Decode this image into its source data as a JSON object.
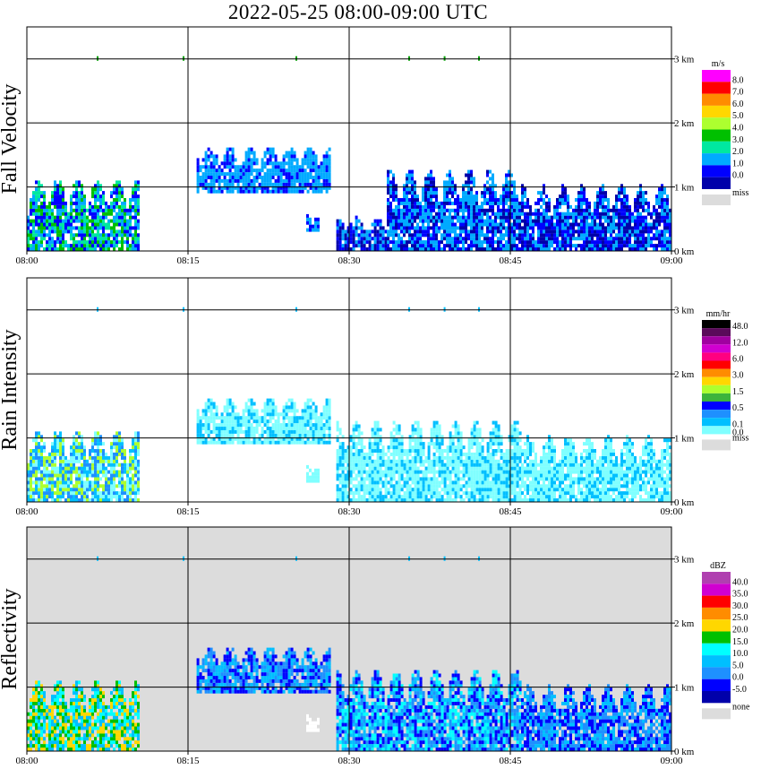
{
  "title": "2022-05-25   08:00-09:00 UTC",
  "chart_data": [
    {
      "type": "heatmap",
      "ylabel": "Fall Velocity",
      "x_ticks": [
        "08:00",
        "08:15",
        "08:30",
        "08:45",
        "09:00"
      ],
      "y_ticks": [
        "0 km",
        "1 km",
        "2 km",
        "3 km"
      ],
      "xlim": [
        "08:00",
        "09:00"
      ],
      "ylim_km": [
        0,
        3.5
      ],
      "grid": true,
      "legend_position": "right",
      "legend_unit": "m/s",
      "legend_labels": [
        "8.0",
        "7.0",
        "6.0",
        "5.0",
        "4.0",
        "3.0",
        "2.0",
        "1.0",
        "0.0"
      ],
      "legend_colors": [
        "#ff00ff",
        "#ff0000",
        "#ff8c00",
        "#ffd700",
        "#adff2f",
        "#00c000",
        "#00e8a0",
        "#00aaff",
        "#0000ff",
        "#0000aa"
      ],
      "missing_label": "miss",
      "missing_color": "#dcdcdc",
      "background": "#ffffff",
      "regions": [
        {
          "t0": 0.0,
          "t1": 10.5,
          "h0": 0.0,
          "h1": 1.1,
          "colors": [
            "#0000ff",
            "#00aaff",
            "#00c000",
            "#00e8a0"
          ]
        },
        {
          "t0": 15.8,
          "t1": 28.3,
          "h0": 0.9,
          "h1": 1.6,
          "colors": [
            "#0000ff",
            "#00aaff",
            "#00aaff"
          ]
        },
        {
          "t0": 26.0,
          "t1": 27.2,
          "h0": 0.3,
          "h1": 0.55,
          "colors": [
            "#00aaff",
            "#0000ff"
          ]
        },
        {
          "t0": 28.8,
          "t1": 33.5,
          "h0": 0.0,
          "h1": 0.5,
          "colors": [
            "#0000ff",
            "#0000aa",
            "#00aaff"
          ]
        },
        {
          "t0": 33.5,
          "t1": 46.0,
          "h0": 0.0,
          "h1": 1.25,
          "colors": [
            "#0000ff",
            "#00aaff",
            "#0000aa",
            "#00aaff"
          ]
        },
        {
          "t0": 46.0,
          "t1": 60.0,
          "h0": 0.0,
          "h1": 1.0,
          "colors": [
            "#0000ff",
            "#00aaff",
            "#0000aa"
          ]
        }
      ]
    },
    {
      "type": "heatmap",
      "ylabel": "Rain Intensity",
      "x_ticks": [
        "08:00",
        "08:15",
        "08:30",
        "08:45",
        "09:00"
      ],
      "y_ticks": [
        "0 km",
        "1 km",
        "2 km",
        "3 km"
      ],
      "xlim": [
        "08:00",
        "09:00"
      ],
      "ylim_km": [
        0,
        3.5
      ],
      "grid": true,
      "legend_position": "right",
      "legend_unit": "mm/hr",
      "legend_labels": [
        "48.0",
        "",
        "12.0",
        "",
        "6.0",
        "",
        "3.0",
        "",
        "1.5",
        "",
        "0.5",
        "",
        "0.1",
        "0.0"
      ],
      "legend_colors": [
        "#000000",
        "#5a0a5a",
        "#a000a0",
        "#d000d0",
        "#ff0080",
        "#ff0000",
        "#ff8c00",
        "#ffd700",
        "#adff2f",
        "#3cb43c",
        "#0000ff",
        "#1e90ff",
        "#00bfff",
        "#80ffff"
      ],
      "missing_label": "miss",
      "missing_color": "#dcdcdc",
      "background": "#ffffff",
      "regions": [
        {
          "t0": 0.0,
          "t1": 10.5,
          "h0": 0.0,
          "h1": 1.1,
          "colors": [
            "#80ffff",
            "#00bfff",
            "#1e90ff",
            "#adff2f"
          ]
        },
        {
          "t0": 15.8,
          "t1": 28.3,
          "h0": 0.9,
          "h1": 1.6,
          "colors": [
            "#80ffff",
            "#80ffff",
            "#00bfff"
          ]
        },
        {
          "t0": 26.0,
          "t1": 27.2,
          "h0": 0.3,
          "h1": 0.55,
          "colors": [
            "#80ffff"
          ]
        },
        {
          "t0": 28.8,
          "t1": 46.0,
          "h0": 0.0,
          "h1": 1.25,
          "colors": [
            "#80ffff",
            "#80ffff",
            "#00bfff"
          ]
        },
        {
          "t0": 46.0,
          "t1": 60.0,
          "h0": 0.0,
          "h1": 1.0,
          "colors": [
            "#80ffff",
            "#80ffff",
            "#00bfff"
          ]
        }
      ]
    },
    {
      "type": "heatmap",
      "ylabel": "Reflectivity",
      "x_ticks": [
        "08:00",
        "08:15",
        "08:30",
        "08:45",
        "09:00"
      ],
      "y_ticks": [
        "0 km",
        "1 km",
        "2 km",
        "3 km"
      ],
      "xlim": [
        "08:00",
        "09:00"
      ],
      "ylim_km": [
        0,
        3.5
      ],
      "grid": true,
      "legend_position": "right",
      "legend_unit": "dBZ",
      "legend_labels": [
        "40.0",
        "35.0",
        "30.0",
        "25.0",
        "20.0",
        "15.0",
        "10.0",
        "5.0",
        "0.0",
        "-5.0"
      ],
      "legend_colors": [
        "#b040b0",
        "#d000d0",
        "#ff0000",
        "#ff8c00",
        "#ffd700",
        "#00c000",
        "#00ffff",
        "#00bfff",
        "#1e90ff",
        "#0000ff",
        "#0000aa"
      ],
      "missing_label": "none",
      "missing_color": "#dcdcdc",
      "background": "#dcdcdc",
      "regions": [
        {
          "t0": 0.0,
          "t1": 10.5,
          "h0": 0.0,
          "h1": 1.1,
          "colors": [
            "#00bfff",
            "#ffd700",
            "#00c000",
            "#00ffff"
          ]
        },
        {
          "t0": 15.8,
          "t1": 28.3,
          "h0": 0.9,
          "h1": 1.6,
          "colors": [
            "#1e90ff",
            "#0000ff",
            "#00bfff"
          ]
        },
        {
          "t0": 26.0,
          "t1": 27.2,
          "h0": 0.3,
          "h1": 0.55,
          "colors": [
            "#ffffff"
          ]
        },
        {
          "t0": 28.8,
          "t1": 46.0,
          "h0": 0.0,
          "h1": 1.25,
          "colors": [
            "#0000ff",
            "#00bfff",
            "#00ffff",
            "#1e90ff"
          ]
        },
        {
          "t0": 46.0,
          "t1": 60.0,
          "h0": 0.0,
          "h1": 1.0,
          "colors": [
            "#0000ff",
            "#1e90ff",
            "#00bfff"
          ]
        }
      ]
    }
  ]
}
